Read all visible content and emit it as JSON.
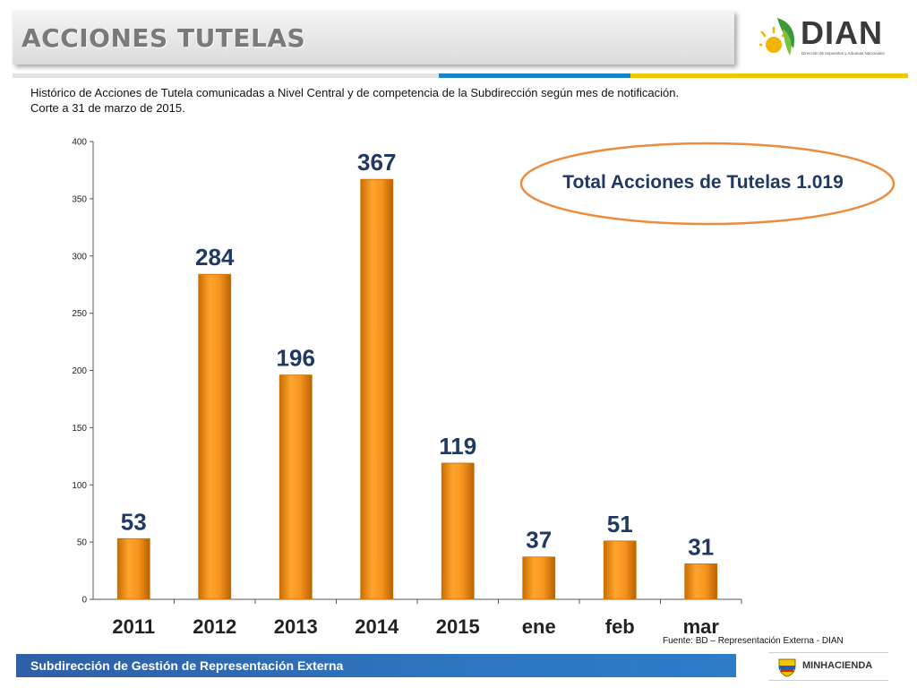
{
  "header": {
    "title": "ACCIONES TUTELAS",
    "logo_name": "DIAN",
    "logo_subtitle": "Dirección de Impuestos y Aduanas Nacionales"
  },
  "description": {
    "line1": "Histórico de Acciones de Tutela  comunicadas a Nivel Central y de competencia de la Subdirección según mes de notificación.",
    "line2": "Corte a 31 de marzo de 2015."
  },
  "total_label": "Total Acciones de Tutelas 1.019",
  "source": "Fuente: BD – Representación Externa - DIAN",
  "footer": {
    "text": "Subdirección de Gestión de Representación Externa",
    "ministry": "MINHACIENDA"
  },
  "colors": {
    "bar": "#f7931e",
    "bar_dark": "#c96e00",
    "value_label": "#1f3864",
    "ellipse_stroke": "#ec8b3c",
    "strip_blue": "#1b82c5",
    "strip_yellow": "#f2c500"
  },
  "chart_data": {
    "type": "bar",
    "categories": [
      "2011",
      "2012",
      "2013",
      "2014",
      "2015",
      "ene",
      "feb",
      "mar"
    ],
    "values": [
      53,
      284,
      196,
      367,
      119,
      37,
      51,
      31
    ],
    "ylim": [
      0,
      400
    ],
    "yticks": [
      0,
      50,
      100,
      150,
      200,
      250,
      300,
      350,
      400
    ],
    "title": "",
    "xlabel": "",
    "ylabel": "",
    "grid": false,
    "data_labels": true
  }
}
